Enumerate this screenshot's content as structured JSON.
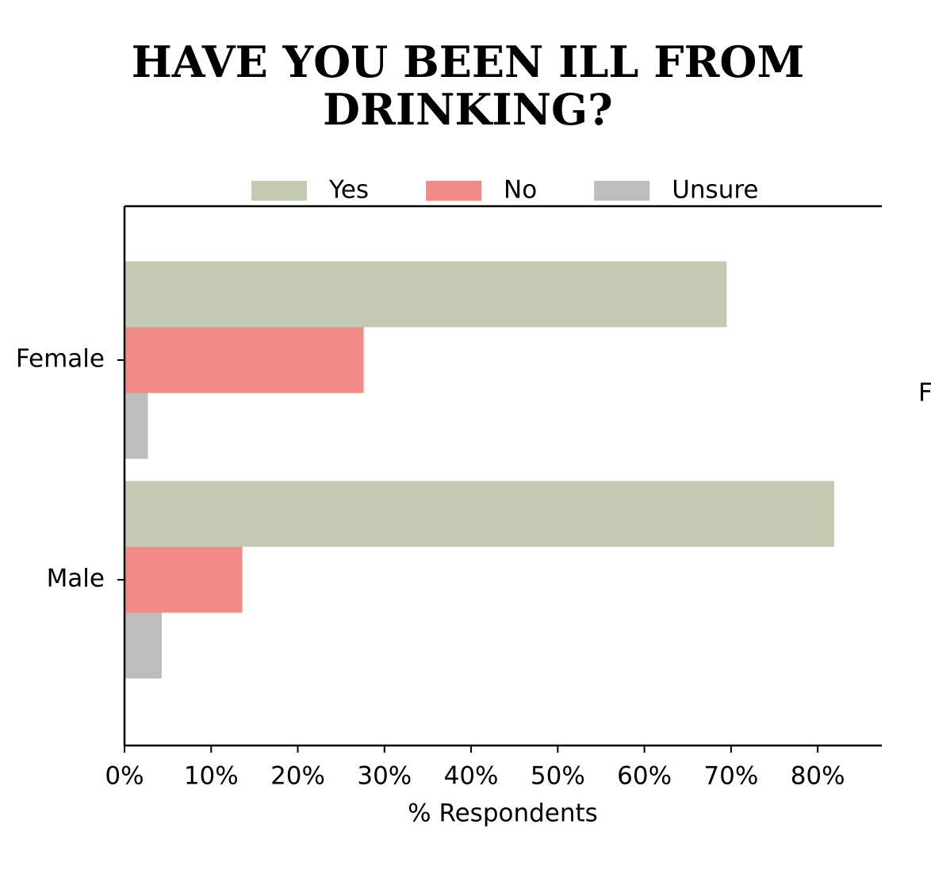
{
  "chart_data": {
    "type": "barh",
    "title": "HAVE YOU BEEN ILL FROM DRINKING?",
    "xlabel": "% Respondents",
    "categories": [
      "Female",
      "Male"
    ],
    "series": [
      {
        "name": "Yes",
        "color": "#c2cbb2",
        "values": [
          69.5,
          81.9
        ]
      },
      {
        "name": "No",
        "color": "#f28a88",
        "values": [
          27.6,
          13.6
        ]
      },
      {
        "name": "Unsure",
        "color": "#bdbdbd",
        "values": [
          2.7,
          4.3
        ]
      }
    ],
    "xlim": [
      0,
      87.4
    ],
    "xticks": [
      {
        "value": 0,
        "label": "0%"
      },
      {
        "value": 10,
        "label": "10%"
      },
      {
        "value": 20,
        "label": "20%"
      },
      {
        "value": 30,
        "label": "30%"
      },
      {
        "value": 40,
        "label": "40%"
      },
      {
        "value": 50,
        "label": "50%"
      },
      {
        "value": 60,
        "label": "60%"
      },
      {
        "value": 70,
        "label": "70%"
      },
      {
        "value": 80,
        "label": "80%"
      }
    ],
    "legend": "top",
    "annotation": "F"
  }
}
